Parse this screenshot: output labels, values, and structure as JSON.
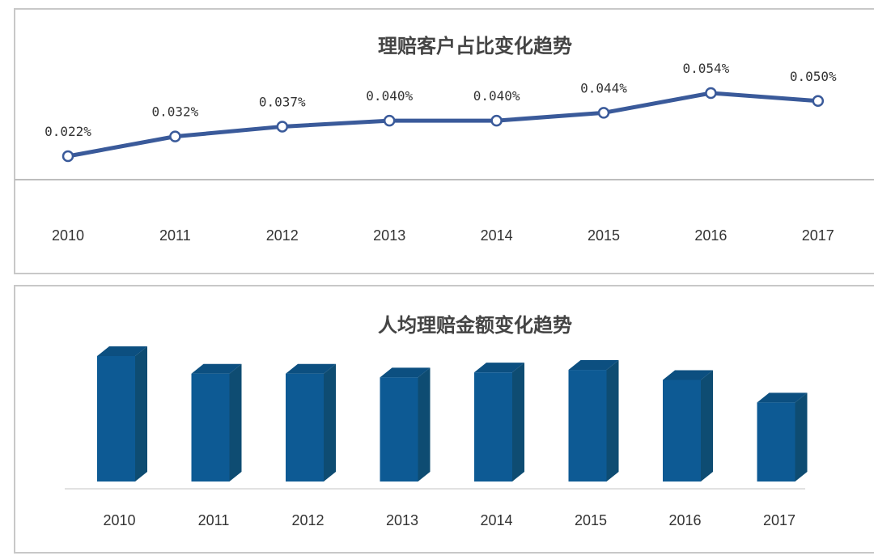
{
  "chart_data": [
    {
      "type": "line",
      "title": "理赔客户占比变化趋势",
      "categories": [
        "2010",
        "2011",
        "2012",
        "2013",
        "2014",
        "2015",
        "2016",
        "2017"
      ],
      "values": [
        0.022,
        0.032,
        0.037,
        0.04,
        0.04,
        0.044,
        0.054,
        0.05
      ],
      "data_labels": [
        "0.022%",
        "0.032%",
        "0.037%",
        "0.040%",
        "0.040%",
        "0.044%",
        "0.054%",
        "0.050%"
      ],
      "unit": "%",
      "grid": false,
      "legend": "none",
      "color": "#3a5a9a"
    },
    {
      "type": "bar",
      "title": "人均理赔金额变化趋势",
      "categories": [
        "2010",
        "2011",
        "2012",
        "2013",
        "2014",
        "2015",
        "2016",
        "2017"
      ],
      "values": [
        100,
        86,
        86,
        83,
        87,
        89,
        81,
        63
      ],
      "values_note_relative": true,
      "style": "3d",
      "grid": false,
      "legend": "none",
      "color": "#0d5a94",
      "side_color": "#0e4c72"
    }
  ]
}
